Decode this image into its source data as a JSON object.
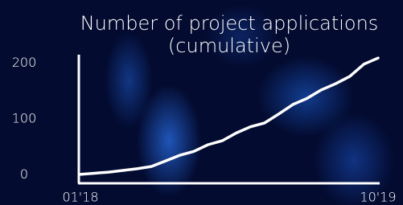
{
  "chart_data": {
    "type": "line",
    "title": "Number of project applications",
    "subtitle": "(cumulative)",
    "categories": [
      "01'18",
      null,
      null,
      null,
      null,
      null,
      null,
      null,
      null,
      null,
      null,
      null,
      null,
      null,
      null,
      null,
      null,
      null,
      null,
      null,
      null,
      "10'19"
    ],
    "values": [
      1,
      3,
      5,
      8,
      11,
      15,
      25,
      35,
      42,
      54,
      61,
      75,
      86,
      93,
      109,
      126,
      137,
      152,
      163,
      176,
      198,
      209
    ],
    "color": "#ffffff",
    "ylim": [
      -15,
      215
    ],
    "yticks": [
      0,
      100,
      200
    ]
  }
}
